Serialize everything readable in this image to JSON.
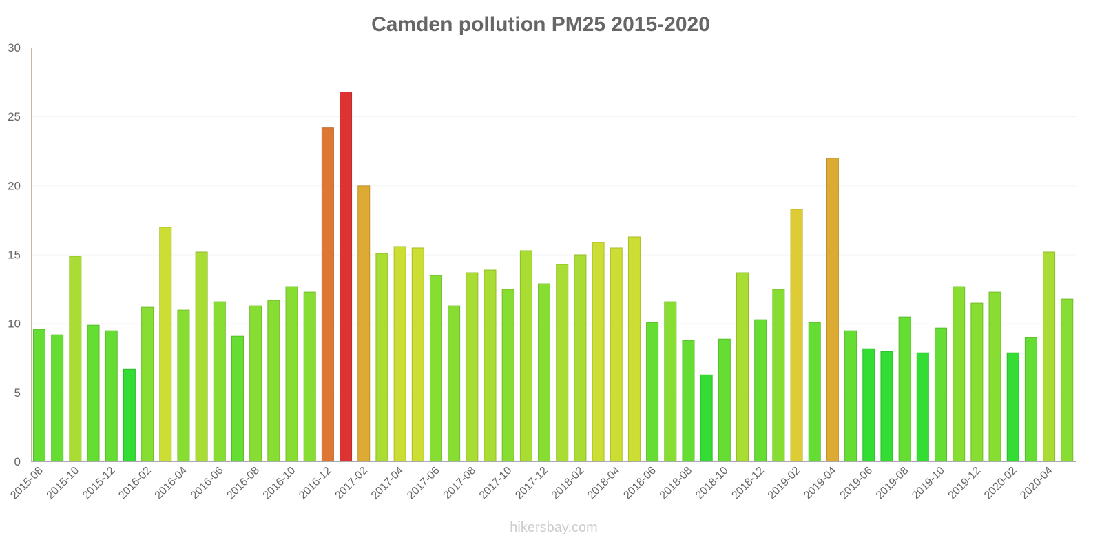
{
  "chart_data": {
    "type": "bar",
    "title": "Camden pollution PM25 2015-2020",
    "xlabel": "",
    "ylabel": "",
    "ylim": [
      0,
      30
    ],
    "yticks": [
      "0",
      "5",
      "10",
      "15",
      "20",
      "25",
      "30"
    ],
    "grid": true,
    "legend": "none",
    "categories": [
      "2015-08",
      "2015-09",
      "2015-10",
      "2015-11",
      "2015-12",
      "2016-01",
      "2016-02",
      "2016-03",
      "2016-04",
      "2016-05",
      "2016-06",
      "2016-07",
      "2016-08",
      "2016-09",
      "2016-10",
      "2016-11",
      "2016-12",
      "2017-01",
      "2017-02",
      "2017-03",
      "2017-04",
      "2017-05",
      "2017-06",
      "2017-07",
      "2017-08",
      "2017-09",
      "2017-10",
      "2017-11",
      "2017-12",
      "2018-01",
      "2018-02",
      "2018-03",
      "2018-04",
      "2018-05",
      "2018-06",
      "2018-07",
      "2018-08",
      "2018-09",
      "2018-10",
      "2018-11",
      "2018-12",
      "2019-01",
      "2019-02",
      "2019-03",
      "2019-04",
      "2019-05",
      "2019-06",
      "2019-07",
      "2019-08",
      "2019-09",
      "2019-10",
      "2019-11",
      "2019-12",
      "2020-01",
      "2020-02",
      "2020-03",
      "2020-04",
      "2020-05"
    ],
    "values": [
      9.6,
      9.2,
      14.9,
      9.9,
      9.5,
      6.7,
      11.2,
      17.0,
      11.0,
      15.2,
      11.6,
      9.1,
      11.3,
      11.7,
      12.7,
      12.3,
      24.2,
      26.8,
      20.0,
      15.1,
      15.6,
      15.5,
      13.5,
      11.3,
      13.7,
      13.9,
      12.5,
      15.3,
      12.9,
      14.3,
      15.0,
      15.9,
      15.5,
      16.3,
      10.1,
      11.6,
      8.8,
      6.3,
      8.9,
      13.7,
      10.3,
      12.5,
      18.3,
      10.1,
      22.0,
      9.5,
      8.2,
      8.0,
      10.5,
      7.9,
      9.7,
      12.7,
      11.5,
      12.3,
      7.9,
      9.0,
      15.2,
      11.8
    ],
    "color_scale": [
      {
        "max": 8.5,
        "color": "#33dd33"
      },
      {
        "max": 10.8,
        "color": "#66dd33"
      },
      {
        "max": 13.5,
        "color": "#88dd33"
      },
      {
        "max": 15.4,
        "color": "#aadd33"
      },
      {
        "max": 17.5,
        "color": "#ccdd33"
      },
      {
        "max": 19,
        "color": "#ddcc33"
      },
      {
        "max": 23,
        "color": "#ddaa33"
      },
      {
        "max": 25,
        "color": "#dd7733"
      },
      {
        "max": 100,
        "color": "#dd3333"
      }
    ]
  },
  "footer": "hikersbay.com"
}
